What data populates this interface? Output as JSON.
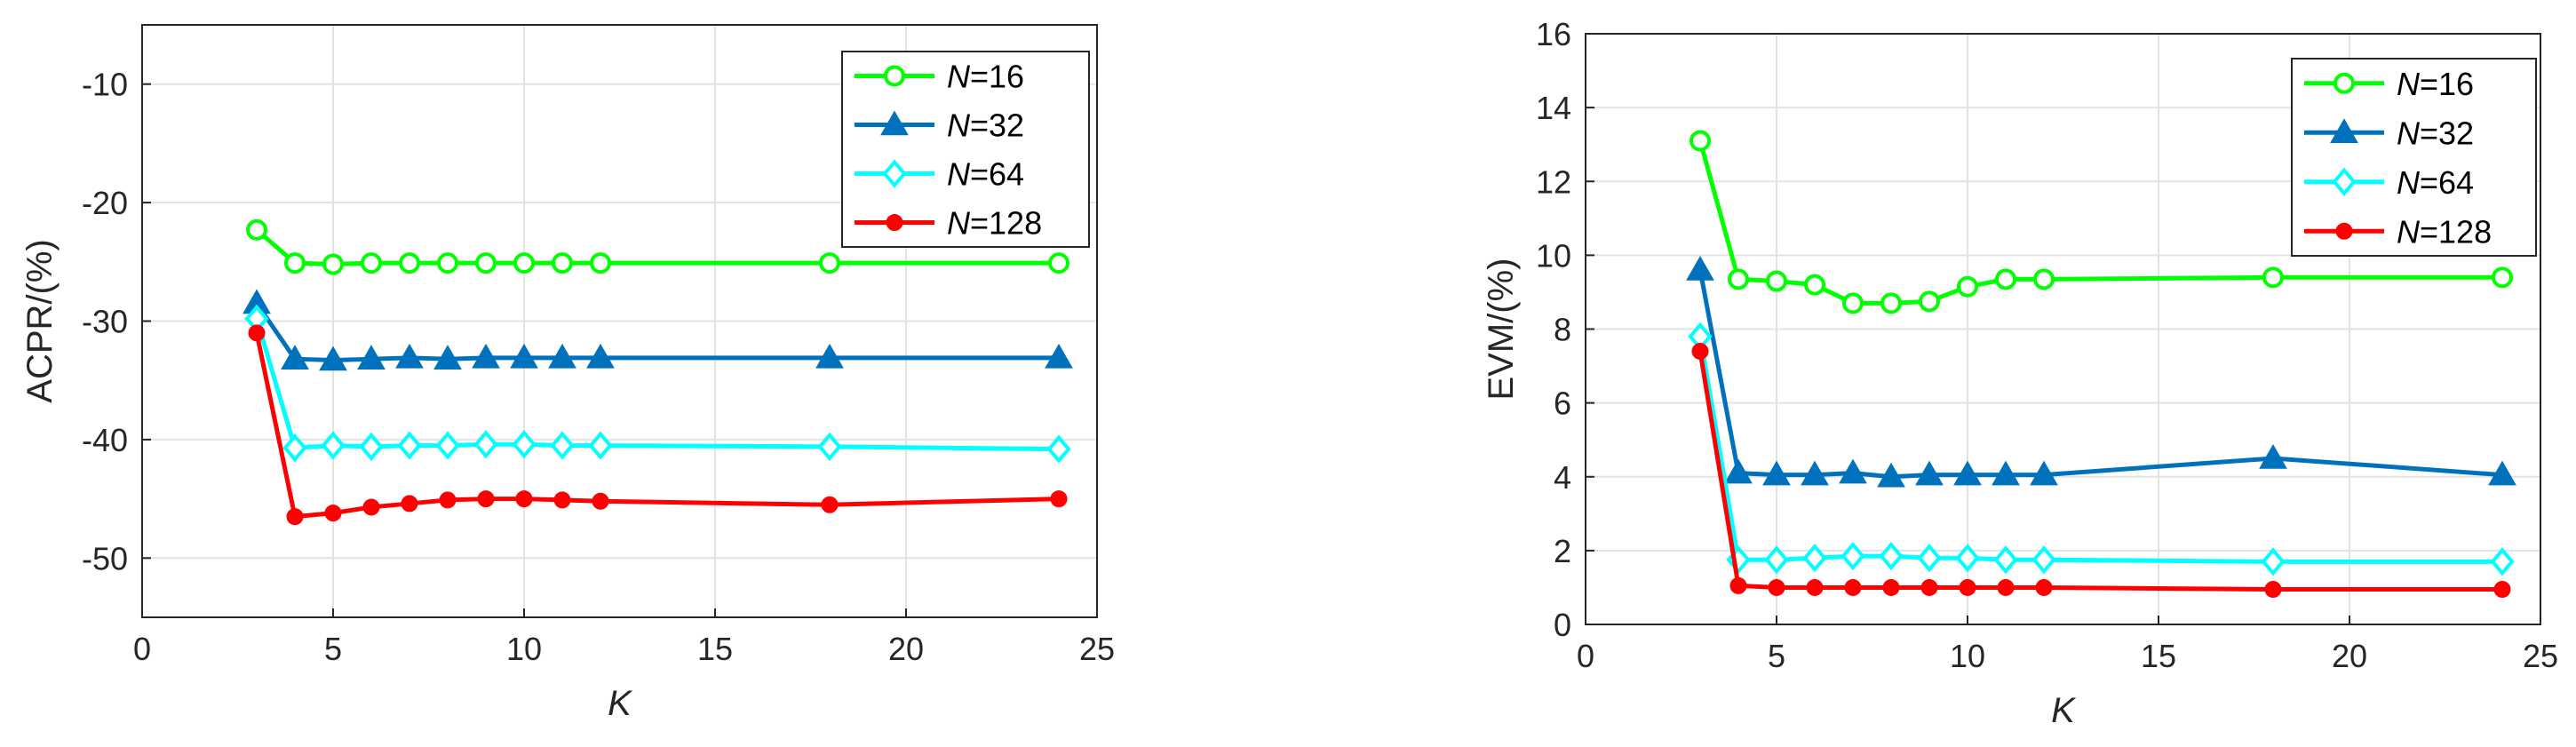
{
  "chart_data": [
    {
      "type": "line",
      "xlabel": "K",
      "ylabel": "ACPR/(%)",
      "xlim": [
        0,
        25
      ],
      "ylim": [
        -55,
        -5
      ],
      "xticks": [
        "0",
        "5",
        "10",
        "15",
        "20",
        "25"
      ],
      "yticks": [
        "-10",
        "-20",
        "-30",
        "-40",
        "-50"
      ],
      "grid": true,
      "legend_position": "top-right",
      "x": [
        3,
        4,
        5,
        6,
        7,
        8,
        9,
        10,
        11,
        12,
        18,
        24
      ],
      "series": [
        {
          "name": "=16",
          "prefix": "N",
          "color": "#00ff00",
          "marker": "circle",
          "values": [
            -22.3,
            -25.1,
            -25.2,
            -25.1,
            -25.1,
            -25.1,
            -25.1,
            -25.1,
            -25.1,
            -25.1,
            -25.1,
            -25.1
          ]
        },
        {
          "name": "=32",
          "prefix": "N",
          "color": "#0072bd",
          "marker": "triangle",
          "values": [
            -28.5,
            -33.2,
            -33.3,
            -33.2,
            -33.1,
            -33.2,
            -33.1,
            -33.1,
            -33.1,
            -33.1,
            -33.1,
            -33.1
          ]
        },
        {
          "name": "=64",
          "prefix": "N",
          "color": "#00ffff",
          "marker": "diamond",
          "values": [
            -29.8,
            -40.7,
            -40.5,
            -40.6,
            -40.5,
            -40.5,
            -40.4,
            -40.4,
            -40.5,
            -40.5,
            -40.6,
            -40.8
          ]
        },
        {
          "name": "=128",
          "prefix": "N",
          "color": "#ff0000",
          "marker": "dot",
          "values": [
            -31.0,
            -46.5,
            -46.2,
            -45.7,
            -45.4,
            -45.1,
            -45.0,
            -45.0,
            -45.1,
            -45.2,
            -45.5,
            -45.0
          ]
        }
      ]
    },
    {
      "type": "line",
      "xlabel": "K",
      "ylabel": "EVM/(%)",
      "xlim": [
        0,
        25
      ],
      "ylim": [
        0,
        16
      ],
      "xticks": [
        "0",
        "5",
        "10",
        "15",
        "20",
        "25"
      ],
      "yticks": [
        "0",
        "2",
        "4",
        "6",
        "8",
        "10",
        "12",
        "14",
        "16"
      ],
      "grid": true,
      "legend_position": "top-right",
      "x": [
        3,
        4,
        5,
        6,
        7,
        8,
        9,
        10,
        11,
        12,
        18,
        24
      ],
      "series": [
        {
          "name": "=16",
          "prefix": "N",
          "color": "#00ff00",
          "marker": "circle",
          "values": [
            13.1,
            9.35,
            9.3,
            9.2,
            8.7,
            8.7,
            8.75,
            9.15,
            9.35,
            9.35,
            9.4,
            9.4
          ]
        },
        {
          "name": "=32",
          "prefix": "N",
          "color": "#0072bd",
          "marker": "triangle",
          "values": [
            9.6,
            4.1,
            4.05,
            4.05,
            4.1,
            4.0,
            4.05,
            4.05,
            4.05,
            4.05,
            4.5,
            4.05
          ]
        },
        {
          "name": "=64",
          "prefix": "N",
          "color": "#00ffff",
          "marker": "diamond",
          "values": [
            7.8,
            1.75,
            1.75,
            1.8,
            1.85,
            1.85,
            1.8,
            1.8,
            1.75,
            1.75,
            1.7,
            1.7
          ]
        },
        {
          "name": "=128",
          "prefix": "N",
          "color": "#ff0000",
          "marker": "dot",
          "values": [
            7.4,
            1.05,
            1.0,
            1.0,
            1.0,
            1.0,
            1.0,
            1.0,
            1.0,
            1.0,
            0.95,
            0.95
          ]
        }
      ]
    }
  ]
}
